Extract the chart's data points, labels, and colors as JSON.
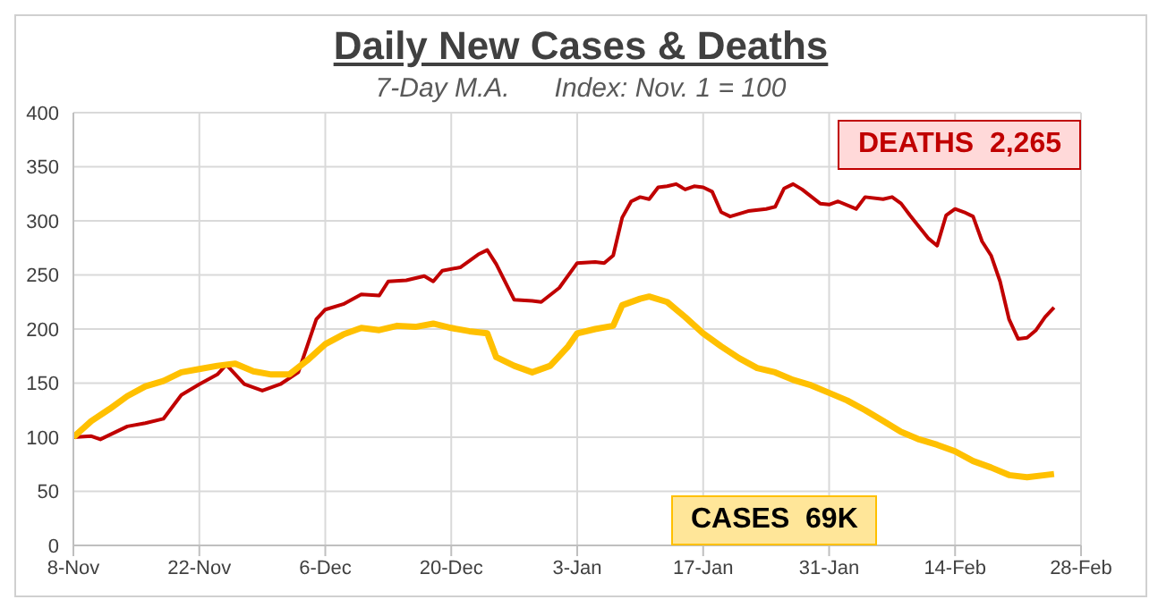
{
  "chart_data": {
    "type": "line",
    "title": "Daily New Cases & Deaths",
    "subtitle": "7-Day M.A.      Index: Nov. 1 = 100",
    "annotations": [
      "DEATHS  2,265",
      "CASES  69K"
    ],
    "categories": [
      "8-Nov",
      null,
      null,
      null,
      null,
      null,
      null,
      null,
      null,
      null,
      null,
      null,
      null,
      null,
      "22-Nov",
      null,
      null,
      null,
      null,
      null,
      null,
      null,
      null,
      null,
      null,
      null,
      null,
      null,
      "6-Dec",
      null,
      null,
      null,
      null,
      null,
      null,
      null,
      null,
      null,
      null,
      null,
      null,
      null,
      "20-Dec",
      null,
      null,
      null,
      null,
      null,
      null,
      null,
      null,
      null,
      null,
      null,
      null,
      null,
      "3-Jan",
      null,
      null,
      null,
      null,
      null,
      null,
      null,
      null,
      null,
      null,
      null,
      null,
      null,
      "17-Jan",
      null,
      null,
      null,
      null,
      null,
      null,
      null,
      null,
      null,
      null,
      null,
      null,
      null,
      "31-Jan",
      null,
      null,
      null,
      null,
      null,
      null,
      null,
      null,
      null,
      null,
      null,
      null,
      null,
      "14-Feb",
      null,
      null,
      null,
      null,
      null,
      null,
      null,
      null,
      null,
      null,
      null,
      null,
      null,
      "28-Feb"
    ],
    "ylim": [
      0,
      400
    ],
    "yticks": [
      0,
      50,
      100,
      150,
      200,
      250,
      300,
      350,
      400
    ],
    "grid": true,
    "marker": "none",
    "line_style": "solid",
    "series": [
      {
        "color": "#c00000",
        "values": [
          100,
          null,
          101,
          98,
          null,
          null,
          110,
          null,
          113,
          null,
          117,
          null,
          139,
          null,
          149,
          null,
          158,
          167,
          null,
          149,
          null,
          143,
          null,
          149,
          null,
          160,
          null,
          209,
          218,
          null,
          223,
          null,
          232,
          null,
          231,
          244,
          null,
          245,
          null,
          249,
          244,
          254,
          null,
          257,
          null,
          269,
          273,
          260,
          null,
          227,
          null,
          226,
          225,
          null,
          238,
          null,
          261,
          null,
          262,
          261,
          268,
          303,
          318,
          322,
          320,
          331,
          332,
          334,
          329,
          332,
          331,
          327,
          308,
          304,
          null,
          309,
          null,
          311,
          313,
          330,
          334,
          329,
          null,
          316,
          315,
          318,
          null,
          311,
          322,
          null,
          320,
          322,
          316,
          305,
          null,
          284,
          277,
          305,
          311,
          308,
          304,
          281,
          268,
          244,
          209,
          191,
          192,
          199,
          211,
          220,
          null,
          null,
          null
        ]
      },
      {
        "color": "#ffc000",
        "values": [
          100,
          null,
          115,
          null,
          126,
          null,
          138,
          null,
          147,
          null,
          152,
          null,
          160,
          null,
          163,
          null,
          166,
          null,
          168,
          null,
          161,
          null,
          158,
          null,
          158,
          null,
          171,
          null,
          186,
          null,
          195,
          null,
          201,
          null,
          199,
          null,
          203,
          null,
          202,
          null,
          205,
          null,
          201,
          null,
          198,
          null,
          196,
          174,
          null,
          166,
          null,
          160,
          null,
          166,
          null,
          184,
          196,
          null,
          200,
          null,
          203,
          222,
          null,
          228,
          230,
          null,
          225,
          null,
          211,
          null,
          196,
          null,
          184,
          null,
          173,
          null,
          164,
          null,
          160,
          null,
          153,
          null,
          148,
          null,
          141,
          null,
          134,
          null,
          125,
          null,
          115,
          null,
          105,
          null,
          98,
          null,
          93,
          null,
          87,
          null,
          78,
          null,
          72,
          null,
          65,
          null,
          63,
          null,
          65,
          66,
          null,
          null,
          null
        ]
      }
    ]
  }
}
